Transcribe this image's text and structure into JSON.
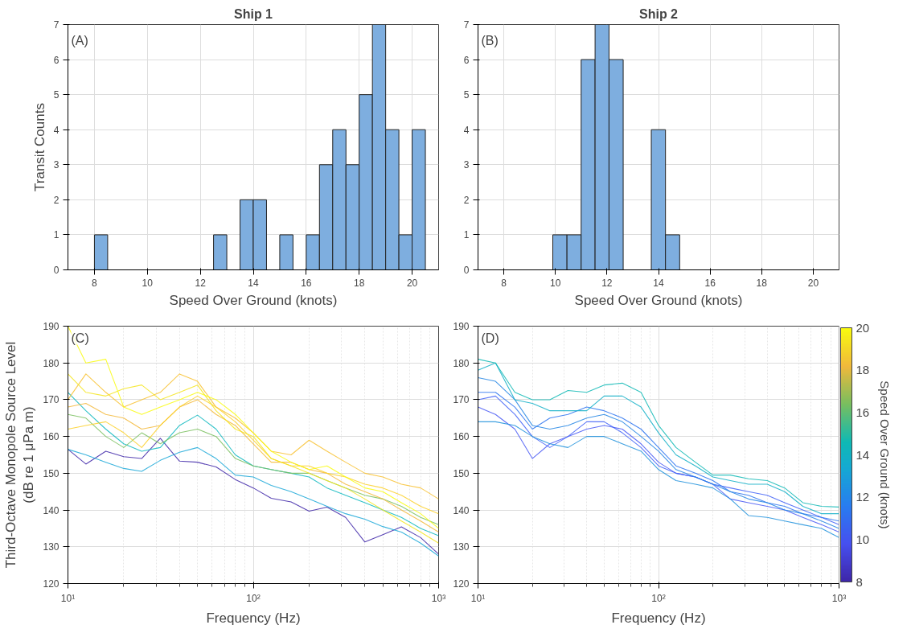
{
  "chart_data": [
    {
      "type": "histogram",
      "title": "Ship 1",
      "xlabel": "Speed Over Ground (knots)",
      "ylabel": "Transit Counts",
      "annotations": [
        "(A)"
      ],
      "color": "#7eaedf",
      "bins": [
        8,
        8.5,
        9,
        9.5,
        10,
        10.5,
        11,
        11.5,
        12,
        12.5,
        13,
        13.5,
        14,
        14.5,
        15,
        15.5,
        16,
        16.5,
        17,
        17.5,
        18,
        18.5,
        19,
        19.5,
        20,
        20.5
      ],
      "values": [
        1,
        0,
        0,
        0,
        0,
        0,
        0,
        0,
        0,
        1,
        0,
        2,
        2,
        0,
        1,
        0,
        1,
        3,
        4,
        3,
        5,
        7,
        4,
        1,
        4
      ],
      "xlim": [
        7,
        21
      ],
      "xticks": [
        8,
        10,
        12,
        14,
        16,
        18,
        20
      ],
      "ylim": [
        0,
        7
      ],
      "yticks": [
        0,
        1,
        2,
        3,
        4,
        5,
        6,
        7
      ],
      "grid": true
    },
    {
      "type": "histogram",
      "title": "Ship 2",
      "xlabel": "Speed Over Ground (knots)",
      "annotations": [
        "(B)"
      ],
      "color": "#7eaedf",
      "bins": [
        9.9,
        10.45,
        11.0,
        11.54,
        12.08,
        12.63,
        13.17,
        13.72,
        14.27,
        14.82
      ],
      "values": [
        1,
        1,
        6,
        7,
        6,
        0,
        0,
        4,
        1
      ],
      "xlim": [
        7,
        21
      ],
      "xticks": [
        8,
        10,
        12,
        14,
        16,
        18,
        20
      ],
      "ylim": [
        0,
        7
      ],
      "yticks": [
        0,
        1,
        2,
        3,
        4,
        5,
        6,
        7
      ],
      "grid": true
    },
    {
      "type": "line",
      "xlabel": "Frequency (Hz)",
      "ylabel": "Third-Octave Monopole Source Level\n(dB re 1 μPa m)",
      "annotations": [
        "(C)"
      ],
      "log": "x",
      "x": [
        10,
        12.5,
        16,
        20,
        25,
        31.5,
        40,
        50,
        63,
        80,
        100,
        125,
        160,
        200,
        250,
        315,
        400,
        500,
        630,
        800,
        1000
      ],
      "series": [
        {
          "color": "#3e26a8",
          "values": [
            156.5,
            152.5,
            156,
            154.5,
            154,
            159.5,
            153.3,
            153,
            151.7,
            148.3,
            146,
            143.2,
            142.2,
            139.7,
            140.8,
            138,
            131.3,
            133.3,
            135.4,
            132.5,
            128
          ]
        },
        {
          "color": "#1ca8d8",
          "values": [
            156.5,
            155,
            153,
            151.3,
            150.5,
            153.5,
            155.7,
            157,
            154,
            149.5,
            149,
            146.7,
            145,
            143,
            141,
            139,
            137.5,
            135.5,
            134,
            131,
            127.5
          ]
        },
        {
          "color": "#0fb8bf",
          "values": [
            172,
            167,
            162,
            158,
            156,
            157,
            163,
            165.8,
            162,
            155,
            152,
            151,
            150,
            149,
            146,
            144,
            142,
            140,
            138,
            135,
            133
          ]
        },
        {
          "color": "#7abf5f",
          "values": [
            166,
            165,
            160,
            157,
            161,
            158,
            161,
            162,
            160,
            154,
            152,
            151,
            150,
            150,
            148,
            146,
            144,
            143,
            141,
            138,
            136
          ]
        },
        {
          "color": "#f3b83a",
          "values": [
            168,
            169,
            166,
            165,
            162,
            163,
            168,
            170,
            166,
            163,
            158,
            153,
            153,
            151,
            150,
            147,
            145,
            143,
            140,
            137,
            134
          ]
        },
        {
          "color": "#f8c130",
          "values": [
            170,
            177,
            172,
            168,
            170,
            172,
            177,
            175,
            168,
            165,
            161,
            156,
            155,
            159,
            156,
            153,
            150,
            149,
            147,
            146,
            143
          ]
        },
        {
          "color": "#fcd028",
          "values": [
            162,
            163,
            164,
            161,
            157,
            163,
            168,
            171,
            168,
            164,
            159,
            154,
            152,
            152,
            150,
            149,
            147,
            146,
            144,
            141,
            139
          ]
        },
        {
          "color": "#f5e51e",
          "values": [
            177,
            172,
            171,
            173,
            174,
            170,
            172,
            174,
            167,
            162,
            160,
            154,
            152,
            150,
            148,
            146,
            143,
            140,
            137,
            134,
            131
          ]
        },
        {
          "color": "#f9fb0e",
          "values": [
            190,
            180,
            181,
            168,
            166,
            168,
            170,
            172,
            170,
            166,
            161,
            156,
            153,
            151,
            152,
            149,
            146,
            145,
            142,
            139,
            135
          ]
        }
      ],
      "xlim": [
        10,
        1000
      ],
      "xticks": [
        {
          "value": 10,
          "label": "10¹"
        },
        {
          "value": 100,
          "label": "10²"
        },
        {
          "value": 1000,
          "label": "10³"
        }
      ],
      "ylim": [
        120,
        190
      ],
      "yticks": [
        120,
        130,
        140,
        150,
        160,
        170,
        180,
        190
      ],
      "grid": true
    },
    {
      "type": "line",
      "xlabel": "Frequency (Hz)",
      "annotations": [
        "(D)"
      ],
      "log": "x",
      "clabel": "Speed Over Ground (knots)",
      "clim": [
        8,
        20
      ],
      "cticks": [
        8,
        10,
        12,
        14,
        16,
        18,
        20
      ],
      "x": [
        10,
        12.5,
        16,
        20,
        25,
        31.5,
        40,
        50,
        63,
        80,
        100,
        125,
        160,
        200,
        250,
        315,
        400,
        500,
        630,
        800,
        1000
      ],
      "series": [
        {
          "color": "#4a5af5",
          "values": [
            168,
            166,
            162,
            154,
            158,
            160,
            162,
            163,
            162,
            158,
            153,
            150,
            149,
            147,
            143,
            142,
            141,
            140,
            138,
            136,
            134
          ]
        },
        {
          "color": "#4060f7",
          "values": [
            170,
            171,
            166,
            160,
            157,
            160,
            164,
            164,
            161,
            157,
            152,
            150,
            149,
            147,
            146,
            145,
            144,
            142,
            140,
            138,
            136
          ]
        },
        {
          "color": "#2d74f0",
          "values": [
            172,
            172,
            168,
            162,
            165,
            166,
            168,
            167,
            165,
            162,
            157,
            152,
            150,
            148,
            145,
            144,
            142,
            141,
            139,
            138,
            137
          ]
        },
        {
          "color": "#2385e4",
          "values": [
            176,
            175,
            170,
            163,
            162,
            163,
            165,
            166,
            164,
            160,
            156,
            151,
            149,
            147,
            145,
            143,
            142,
            140,
            139,
            137,
            135
          ]
        },
        {
          "color": "#1e90dc",
          "values": [
            164,
            164,
            163,
            160,
            158,
            157,
            160,
            160,
            158,
            156,
            151,
            148,
            147,
            146,
            143,
            138.5,
            138,
            137,
            136,
            135,
            132.5
          ]
        },
        {
          "color": "#10afc7",
          "values": [
            178,
            180,
            170,
            169,
            167,
            167,
            167,
            171,
            171,
            168,
            161,
            155,
            152,
            149,
            148,
            147,
            147,
            145,
            141,
            139,
            139
          ]
        },
        {
          "color": "#0fb9b5",
          "values": [
            181,
            180,
            172,
            170,
            170,
            172.5,
            172,
            174,
            174.5,
            172,
            163,
            157,
            153,
            149.5,
            149.5,
            148.5,
            148,
            146,
            142,
            141,
            140.8
          ]
        }
      ],
      "xlim": [
        10,
        1000
      ],
      "xticks": [
        {
          "value": 10,
          "label": "10¹"
        },
        {
          "value": 100,
          "label": "10²"
        },
        {
          "value": 1000,
          "label": "10³"
        }
      ],
      "ylim": [
        120,
        190
      ],
      "yticks": [
        120,
        130,
        140,
        150,
        160,
        170,
        180,
        190
      ],
      "grid": true
    }
  ]
}
